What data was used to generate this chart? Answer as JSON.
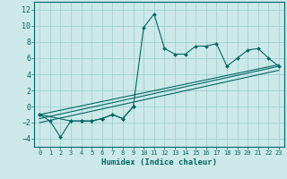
{
  "xlabel": "Humidex (Indice chaleur)",
  "bg_color": "#cce8e8",
  "grid_color": "#99cccc",
  "line_color": "#006666",
  "xlim": [
    -0.5,
    23.5
  ],
  "ylim": [
    -5,
    13
  ],
  "xticks": [
    0,
    1,
    2,
    3,
    4,
    5,
    6,
    7,
    8,
    9,
    10,
    11,
    12,
    13,
    14,
    15,
    16,
    17,
    18,
    19,
    20,
    21,
    22,
    23
  ],
  "yticks": [
    -4,
    -2,
    0,
    2,
    4,
    6,
    8,
    10,
    12
  ],
  "main_x": [
    0,
    1,
    2,
    3,
    4,
    5,
    6,
    7,
    8,
    9,
    10,
    11,
    12,
    13,
    14,
    15,
    16,
    17,
    18,
    19,
    20,
    21,
    22,
    23
  ],
  "main_y": [
    -1,
    -1.8,
    -3.8,
    -1.8,
    -1.8,
    -1.8,
    -1.5,
    -1.0,
    -1.5,
    0.0,
    9.8,
    11.5,
    7.2,
    6.5,
    6.5,
    7.5,
    7.5,
    7.8,
    5.0,
    6.0,
    7.0,
    7.2,
    6.0,
    5.0
  ],
  "extra_x": [
    0,
    3,
    4,
    5,
    6,
    7,
    8,
    9
  ],
  "extra_y": [
    -1.0,
    -1.8,
    -1.8,
    -1.8,
    -1.5,
    -1.0,
    -1.5,
    0.0
  ],
  "line1_x": [
    0,
    23
  ],
  "line1_y": [
    -1.5,
    5.0
  ],
  "line2_x": [
    0,
    23
  ],
  "line2_y": [
    -2.0,
    4.5
  ],
  "line3_x": [
    0,
    23
  ],
  "line3_y": [
    -1.0,
    5.2
  ]
}
